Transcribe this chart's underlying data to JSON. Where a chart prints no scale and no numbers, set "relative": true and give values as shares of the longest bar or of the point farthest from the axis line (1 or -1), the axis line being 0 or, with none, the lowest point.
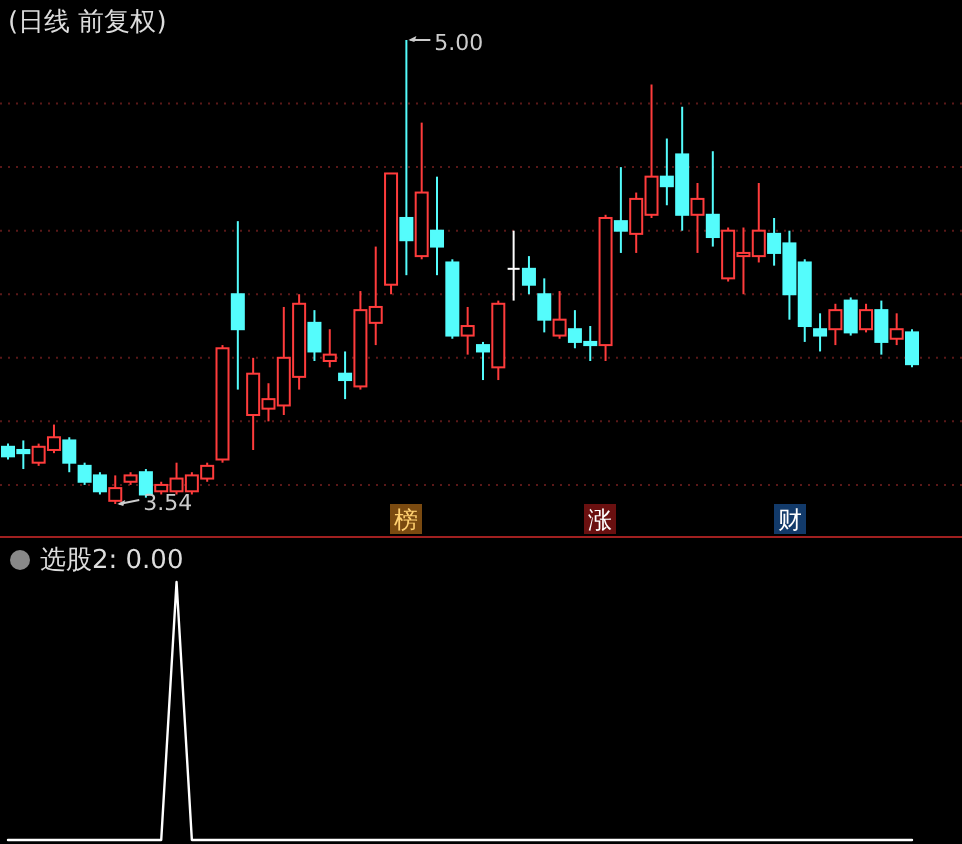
{
  "chart_data": [
    {
      "type": "candlestick",
      "title": "(日线 前复权)",
      "grid": "y",
      "yticks": [
        {
          "value": 3.6,
          "label": null
        },
        {
          "value": 3.8,
          "label": null
        },
        {
          "value": 4.0,
          "label": null
        },
        {
          "value": 4.2,
          "label": null
        },
        {
          "value": 4.4,
          "label": null
        },
        {
          "value": 4.6,
          "label": null
        },
        {
          "value": 4.8,
          "label": null
        }
      ],
      "categories": [
        null,
        null,
        null,
        null,
        null,
        null,
        null,
        null,
        null,
        null,
        null,
        null,
        null,
        null,
        null,
        null,
        null,
        null,
        null,
        null,
        null,
        null,
        null,
        null,
        null,
        null,
        null,
        null,
        null,
        null,
        null,
        null,
        null,
        null,
        null,
        null,
        null,
        null,
        null,
        null,
        null,
        null,
        null,
        null,
        null,
        null,
        null,
        null,
        null,
        null,
        null,
        null,
        null,
        null,
        null,
        null,
        null,
        null,
        null,
        null
      ],
      "ohlc": [
        [
          3.72,
          3.73,
          3.68,
          3.69
        ],
        [
          3.71,
          3.74,
          3.65,
          3.7
        ],
        [
          3.67,
          3.73,
          3.66,
          3.72
        ],
        [
          3.71,
          3.79,
          3.7,
          3.75
        ],
        [
          3.74,
          3.75,
          3.64,
          3.67
        ],
        [
          3.66,
          3.67,
          3.6,
          3.61
        ],
        [
          3.63,
          3.64,
          3.57,
          3.58
        ],
        [
          3.55,
          3.63,
          3.54,
          3.59
        ],
        [
          3.61,
          3.64,
          3.6,
          3.63
        ],
        [
          3.64,
          3.65,
          3.56,
          3.57
        ],
        [
          3.58,
          3.61,
          3.57,
          3.6
        ],
        [
          3.58,
          3.67,
          3.57,
          3.62
        ],
        [
          3.58,
          3.64,
          3.57,
          3.63
        ],
        [
          3.62,
          3.67,
          3.61,
          3.66
        ],
        [
          3.68,
          4.04,
          3.67,
          4.03
        ],
        [
          4.2,
          4.43,
          3.9,
          4.09
        ],
        [
          3.82,
          4.0,
          3.71,
          3.95
        ],
        [
          3.84,
          3.92,
          3.8,
          3.87
        ],
        [
          3.85,
          4.16,
          3.82,
          4.0
        ],
        [
          3.94,
          4.2,
          3.9,
          4.17
        ],
        [
          4.11,
          4.15,
          3.99,
          4.02
        ],
        [
          3.99,
          4.09,
          3.97,
          4.01
        ],
        [
          3.95,
          4.02,
          3.87,
          3.93
        ],
        [
          3.91,
          4.21,
          3.9,
          4.15
        ],
        [
          4.11,
          4.35,
          4.04,
          4.16
        ],
        [
          4.23,
          4.58,
          4.2,
          4.58
        ],
        [
          4.44,
          5.0,
          4.26,
          4.37
        ],
        [
          4.32,
          4.74,
          4.31,
          4.52
        ],
        [
          4.4,
          4.57,
          4.26,
          4.35
        ],
        [
          4.3,
          4.31,
          4.06,
          4.07
        ],
        [
          4.07,
          4.16,
          4.01,
          4.1
        ],
        [
          4.04,
          4.05,
          3.93,
          4.02
        ],
        [
          3.97,
          4.18,
          3.93,
          4.17
        ],
        [
          4.28,
          4.4,
          4.18,
          4.28
        ],
        [
          4.28,
          4.32,
          4.2,
          4.23
        ],
        [
          4.2,
          4.25,
          4.08,
          4.12
        ],
        [
          4.07,
          4.21,
          4.06,
          4.12
        ],
        [
          4.09,
          4.15,
          4.03,
          4.05
        ],
        [
          4.05,
          4.1,
          3.99,
          4.04
        ],
        [
          4.04,
          4.45,
          3.99,
          4.44
        ],
        [
          4.43,
          4.6,
          4.33,
          4.4
        ],
        [
          4.39,
          4.52,
          4.33,
          4.5
        ],
        [
          4.45,
          4.86,
          4.44,
          4.57
        ],
        [
          4.57,
          4.69,
          4.48,
          4.54
        ],
        [
          4.64,
          4.79,
          4.4,
          4.45
        ],
        [
          4.45,
          4.55,
          4.33,
          4.5
        ],
        [
          4.45,
          4.65,
          4.35,
          4.38
        ],
        [
          4.25,
          4.41,
          4.24,
          4.4
        ],
        [
          4.32,
          4.41,
          4.2,
          4.33
        ],
        [
          4.32,
          4.55,
          4.3,
          4.4
        ],
        [
          4.39,
          4.44,
          4.29,
          4.33
        ],
        [
          4.36,
          4.4,
          4.12,
          4.2
        ],
        [
          4.3,
          4.31,
          4.05,
          4.1
        ],
        [
          4.09,
          4.14,
          4.02,
          4.07
        ],
        [
          4.09,
          4.17,
          4.04,
          4.15
        ],
        [
          4.18,
          4.19,
          4.07,
          4.08
        ],
        [
          4.09,
          4.17,
          4.08,
          4.15
        ],
        [
          4.15,
          4.18,
          4.01,
          4.05
        ],
        [
          4.06,
          4.14,
          4.04,
          4.09
        ],
        [
          4.08,
          4.09,
          3.97,
          3.98
        ]
      ],
      "colors": [
        "#54fcfc",
        "#54fcfc",
        "#ff3c3c",
        "#ff3c3c",
        "#54fcfc",
        "#54fcfc",
        "#54fcfc",
        "#ff3c3c",
        "#ff3c3c",
        "#54fcfc",
        "#ff3c3c",
        "#ff3c3c",
        "#ff3c3c",
        "#ff3c3c",
        "#ff3c3c",
        "#54fcfc",
        "#ff3c3c",
        "#ff3c3c",
        "#ff3c3c",
        "#ff3c3c",
        "#54fcfc",
        "#ff3c3c",
        "#54fcfc",
        "#ff3c3c",
        "#ff3c3c",
        "#ff3c3c",
        "#54fcfc",
        "#ff3c3c",
        "#54fcfc",
        "#54fcfc",
        "#ff3c3c",
        "#54fcfc",
        "#ff3c3c",
        "#ffffff",
        "#54fcfc",
        "#54fcfc",
        "#ff3c3c",
        "#54fcfc",
        "#54fcfc",
        "#ff3c3c",
        "#54fcfc",
        "#ff3c3c",
        "#ff3c3c",
        "#54fcfc",
        "#54fcfc",
        "#ff3c3c",
        "#54fcfc",
        "#ff3c3c",
        "#ff3c3c",
        "#ff3c3c",
        "#54fcfc",
        "#54fcfc",
        "#54fcfc",
        "#54fcfc",
        "#ff3c3c",
        "#54fcfc",
        "#ff3c3c",
        "#54fcfc",
        "#ff3c3c",
        "#54fcfc"
      ],
      "annotations": [
        "5.00",
        "3.54",
        "榜",
        "涨",
        "财"
      ]
    },
    {
      "type": "line",
      "title": "选股2: 0.00",
      "relative": true,
      "categories": [
        null,
        null,
        null,
        null,
        null,
        null,
        null,
        null,
        null,
        null,
        null,
        null,
        null,
        null,
        null,
        null,
        null,
        null,
        null,
        null,
        null,
        null,
        null,
        null,
        null,
        null,
        null,
        null,
        null,
        null,
        null,
        null,
        null,
        null,
        null,
        null,
        null,
        null,
        null,
        null,
        null,
        null,
        null,
        null,
        null,
        null,
        null,
        null,
        null,
        null,
        null,
        null,
        null,
        null,
        null,
        null,
        null,
        null,
        null,
        null
      ],
      "series": [
        {
          "color": "#ffffff",
          "values": [
            0,
            0,
            0,
            0,
            0,
            0,
            0,
            0,
            0,
            0,
            0,
            1,
            0,
            0,
            0,
            0,
            0,
            0,
            0,
            0,
            0,
            0,
            0,
            0,
            0,
            0,
            0,
            0,
            0,
            0,
            0,
            0,
            0,
            0,
            0,
            0,
            0,
            0,
            0,
            0,
            0,
            0,
            0,
            0,
            0,
            0,
            0,
            0,
            0,
            0,
            0,
            0,
            0,
            0,
            0,
            0,
            0,
            0,
            0,
            0
          ]
        }
      ]
    }
  ]
}
